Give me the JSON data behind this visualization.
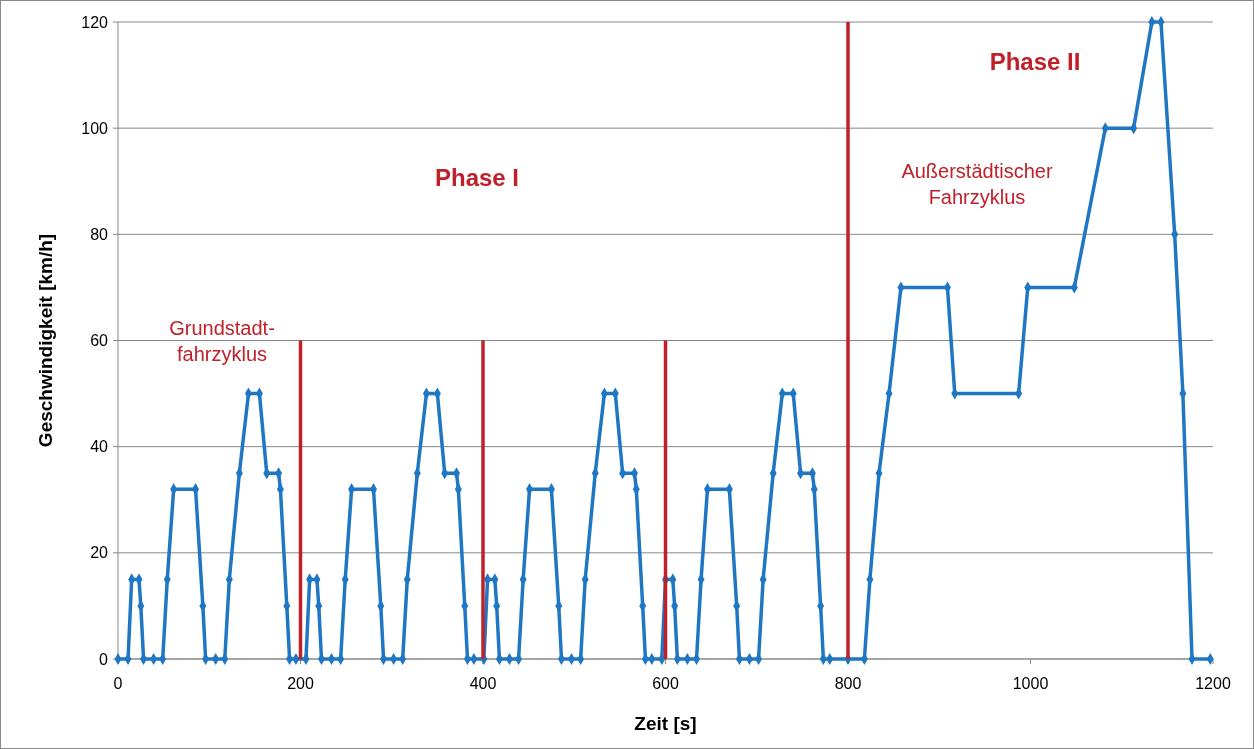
{
  "chart_data": {
    "type": "line",
    "xlabel": "Zeit [s]",
    "ylabel": "Geschwindigkeit [km/h]",
    "xlim": [
      0,
      1200
    ],
    "ylim": [
      0,
      120
    ],
    "xticks": [
      0,
      200,
      400,
      600,
      800,
      1000,
      1200
    ],
    "yticks": [
      0,
      20,
      40,
      60,
      80,
      100,
      120
    ],
    "grid": "y",
    "marker": "diamond",
    "line_style": "solid",
    "annotations": [
      "Grundstadt-\nfahrzyklus",
      "Phase I",
      "Außerstädtischer\nFahrzyklus",
      "Phase II"
    ],
    "series": [
      {
        "color": "#1f77c4",
        "x": [
          0,
          11,
          15,
          23,
          25,
          28,
          39,
          49,
          54,
          61,
          85,
          93,
          96,
          107,
          117,
          122,
          133,
          143,
          155,
          163,
          176,
          178,
          185,
          188,
          195,
          206,
          210,
          218,
          220,
          223,
          234,
          244,
          249,
          256,
          280,
          288,
          291,
          302,
          312,
          317,
          328,
          338,
          350,
          358,
          371,
          373,
          380,
          383,
          390,
          401,
          405,
          413,
          415,
          418,
          429,
          439,
          444,
          451,
          475,
          483,
          486,
          497,
          507,
          512,
          523,
          533,
          545,
          553,
          566,
          568,
          575,
          578,
          585,
          596,
          600,
          608,
          610,
          613,
          624,
          634,
          639,
          646,
          670,
          678,
          681,
          692,
          702,
          707,
          718,
          728,
          740,
          748,
          761,
          763,
          770,
          773,
          780,
          800,
          818,
          824,
          834,
          845,
          858,
          909,
          917,
          987,
          997,
          1048,
          1082,
          1113,
          1133,
          1143,
          1158,
          1167,
          1177,
          1197
        ],
        "values": [
          0,
          0,
          15,
          15,
          10,
          0,
          0,
          0,
          15,
          32,
          32,
          10,
          0,
          0,
          0,
          15,
          35,
          50,
          50,
          35,
          35,
          32,
          10,
          0,
          0,
          0,
          15,
          15,
          10,
          0,
          0,
          0,
          15,
          32,
          32,
          10,
          0,
          0,
          0,
          15,
          35,
          50,
          50,
          35,
          35,
          32,
          10,
          0,
          0,
          0,
          15,
          15,
          10,
          0,
          0,
          0,
          15,
          32,
          32,
          10,
          0,
          0,
          0,
          15,
          35,
          50,
          50,
          35,
          35,
          32,
          10,
          0,
          0,
          0,
          15,
          15,
          10,
          0,
          0,
          0,
          15,
          32,
          32,
          10,
          0,
          0,
          0,
          15,
          35,
          50,
          50,
          35,
          35,
          32,
          10,
          0,
          0,
          0,
          0,
          15,
          35,
          50,
          70,
          70,
          50,
          50,
          70,
          70,
          100,
          100,
          120,
          120,
          80,
          50,
          0,
          0
        ]
      },
      {
        "type": "line",
        "color": "#c0202a",
        "marker": "none",
        "x": [
          200,
          200
        ],
        "values": [
          0,
          60
        ]
      },
      {
        "type": "line",
        "color": "#c0202a",
        "marker": "none",
        "x": [
          400,
          400
        ],
        "values": [
          0,
          60
        ]
      },
      {
        "type": "line",
        "color": "#c0202a",
        "marker": "none",
        "x": [
          600,
          600
        ],
        "values": [
          0,
          60
        ]
      },
      {
        "type": "line",
        "color": "#c0202a",
        "marker": "none",
        "x": [
          800,
          800
        ],
        "values": [
          0,
          120
        ]
      }
    ]
  }
}
